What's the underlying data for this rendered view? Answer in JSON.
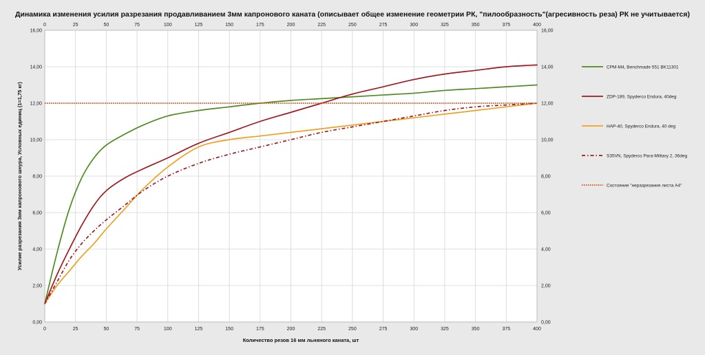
{
  "chart_data": {
    "type": "line",
    "title": "Динамика изменения усилия разрезания продавливанием 3мм капронового каната (описывает общее изменение геометрии РК, \"пилообразность\"(агресивность реза) РК не учитывается)",
    "xlabel": "Количество резов 16 мм льняного каната, шт",
    "ylabel": "Усилие разрезания 3мм капронового шнура, Условных единиц (1=1,75 кг)",
    "xlim": [
      0,
      400
    ],
    "ylim": [
      0,
      16
    ],
    "x_ticks": [
      "0",
      "25",
      "50",
      "75",
      "100",
      "125",
      "150",
      "175",
      "200",
      "225",
      "250",
      "275",
      "300",
      "325",
      "350",
      "375",
      "400"
    ],
    "y_ticks": [
      "0,00",
      "2,00",
      "4,00",
      "6,00",
      "8,00",
      "10,00",
      "12,00",
      "14,00",
      "16,00"
    ],
    "grid": true,
    "legend_position": "right",
    "series": [
      {
        "name": "CPM-M4, Benchmade 551 BK11301",
        "color": "#4e8a1f",
        "style": "solid",
        "x": [
          0,
          10,
          20,
          30,
          40,
          50,
          65,
          80,
          100,
          125,
          150,
          175,
          200,
          225,
          250,
          275,
          300,
          325,
          350,
          375,
          400
        ],
        "y": [
          1.0,
          3.8,
          6.2,
          7.9,
          9.0,
          9.7,
          10.3,
          10.8,
          11.3,
          11.6,
          11.8,
          12.0,
          12.15,
          12.25,
          12.35,
          12.45,
          12.55,
          12.7,
          12.8,
          12.9,
          13.0
        ]
      },
      {
        "name": "ZDP-189, Spyderco Endura, 40deg",
        "color": "#a01820",
        "style": "solid",
        "x": [
          0,
          10,
          20,
          30,
          40,
          50,
          65,
          80,
          100,
          125,
          150,
          175,
          200,
          225,
          250,
          275,
          300,
          325,
          350,
          375,
          400
        ],
        "y": [
          1.0,
          2.6,
          4.0,
          5.3,
          6.4,
          7.2,
          7.9,
          8.4,
          9.0,
          9.8,
          10.4,
          11.0,
          11.5,
          12.0,
          12.5,
          12.9,
          13.3,
          13.6,
          13.8,
          14.0,
          14.1
        ]
      },
      {
        "name": "HAP-40, Spyderco Endura, 40 deg",
        "color": "#f0a020",
        "style": "solid",
        "x": [
          0,
          10,
          20,
          30,
          40,
          50,
          65,
          80,
          100,
          125,
          150,
          175,
          200,
          225,
          250,
          275,
          300,
          325,
          350,
          375,
          400
        ],
        "y": [
          1.0,
          2.0,
          2.8,
          3.6,
          4.3,
          5.1,
          6.2,
          7.3,
          8.5,
          9.6,
          10.0,
          10.2,
          10.4,
          10.6,
          10.8,
          11.0,
          11.2,
          11.4,
          11.6,
          11.8,
          12.0
        ]
      },
      {
        "name": "S35VN, Spyderco Para-Military 2, 36deg",
        "color": "#a01820",
        "style": "dashdot",
        "x": [
          0,
          10,
          20,
          30,
          40,
          50,
          65,
          80,
          100,
          125,
          150,
          175,
          200,
          225,
          250,
          275,
          300,
          325,
          350,
          375,
          400
        ],
        "y": [
          1.0,
          2.2,
          3.4,
          4.3,
          5.0,
          5.6,
          6.4,
          7.2,
          8.0,
          8.7,
          9.2,
          9.6,
          10.0,
          10.4,
          10.7,
          11.0,
          11.3,
          11.6,
          11.8,
          11.9,
          12.0
        ]
      },
      {
        "name": "Состояние \"неразрезания листа А4\"",
        "color": "#e05018",
        "style": "dotted",
        "x": [
          0,
          400
        ],
        "y": [
          12.0,
          12.0
        ]
      }
    ]
  }
}
